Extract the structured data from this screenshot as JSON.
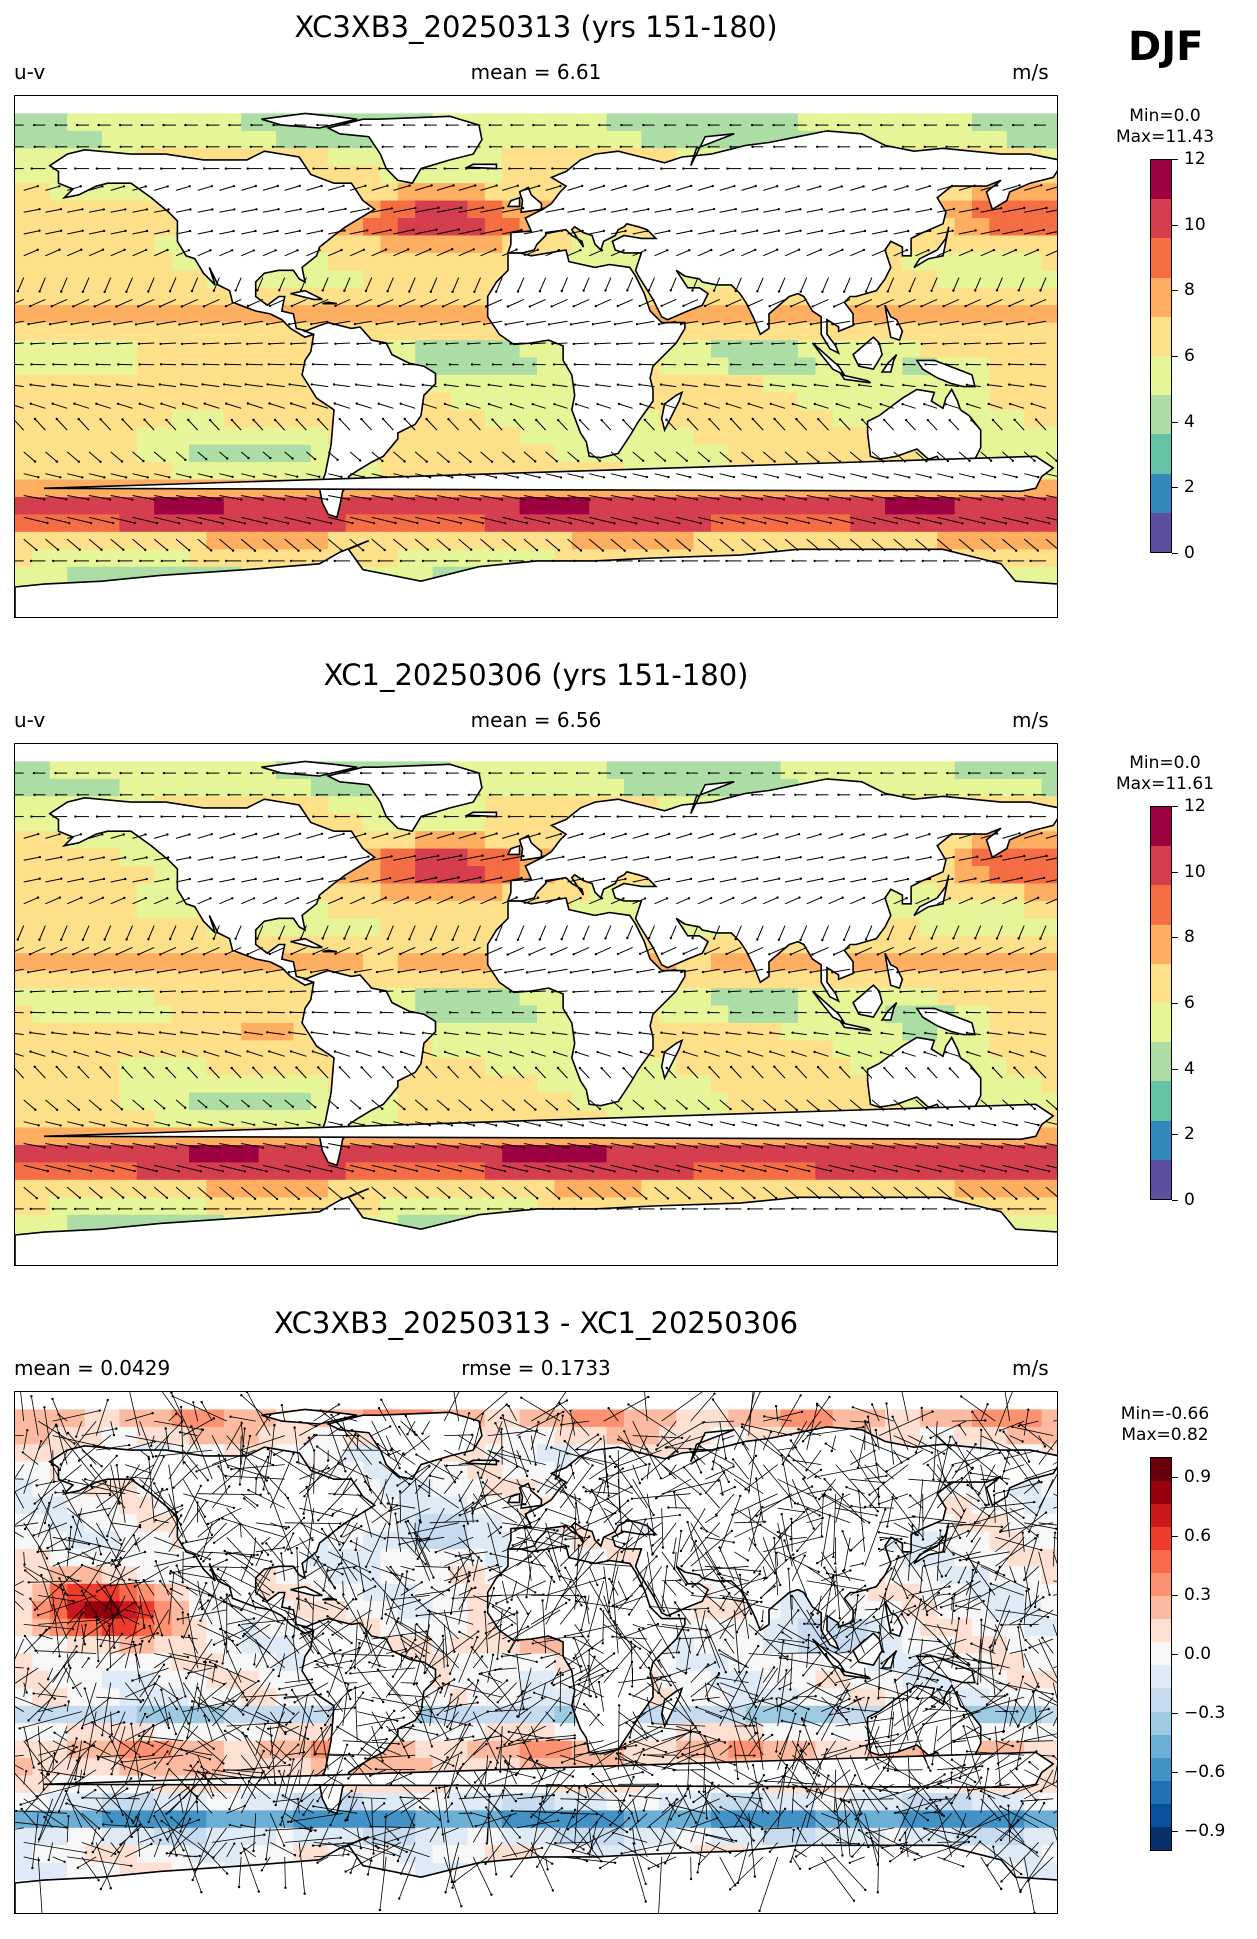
{
  "season": "DJF",
  "panels": [
    {
      "title": "XC3XB3_20250313 (yrs 151-180)",
      "left_label": "u-v",
      "center_label": "mean = 6.61",
      "right_label": "m/s",
      "colorbar": {
        "min_text": "Min=0.0",
        "max_text": "Max=11.43",
        "ticks": [
          "0",
          "2",
          "4",
          "6",
          "8",
          "10",
          "12"
        ],
        "colors": [
          "#5e4fa2",
          "#3288bd",
          "#66c2a5",
          "#abdda4",
          "#e6f598",
          "#fee08b",
          "#fdae61",
          "#f46d43",
          "#d53e4f",
          "#9e0142"
        ]
      }
    },
    {
      "title": "XC1_20250306 (yrs 151-180)",
      "left_label": "u-v",
      "center_label": "mean = 6.56",
      "right_label": "m/s",
      "colorbar": {
        "min_text": "Min=0.0",
        "max_text": "Max=11.61",
        "ticks": [
          "0",
          "2",
          "4",
          "6",
          "8",
          "10",
          "12"
        ],
        "colors": [
          "#5e4fa2",
          "#3288bd",
          "#66c2a5",
          "#abdda4",
          "#e6f598",
          "#fee08b",
          "#fdae61",
          "#f46d43",
          "#d53e4f",
          "#9e0142"
        ]
      }
    },
    {
      "title": "XC3XB3_20250313 - XC1_20250306",
      "left_label": "mean = 0.0429",
      "center_label": "rmse = 0.1733",
      "right_label": "m/s",
      "colorbar": {
        "min_text": "Min=-0.66",
        "max_text": "Max=0.82",
        "ticks": [
          "0.9",
          "0.6",
          "0.3",
          "0.0",
          "−0.3",
          "−0.6",
          "−0.9"
        ],
        "colors": [
          "#08306b",
          "#08519c",
          "#2171b5",
          "#4292c6",
          "#6baed6",
          "#9ecae1",
          "#c6dbef",
          "#deebf7",
          "#f7f7f7",
          "#fde0d2",
          "#fcbba1",
          "#fc9272",
          "#fb6a4a",
          "#ef3b2c",
          "#cb181d",
          "#99000d",
          "#67000d"
        ]
      }
    }
  ]
}
